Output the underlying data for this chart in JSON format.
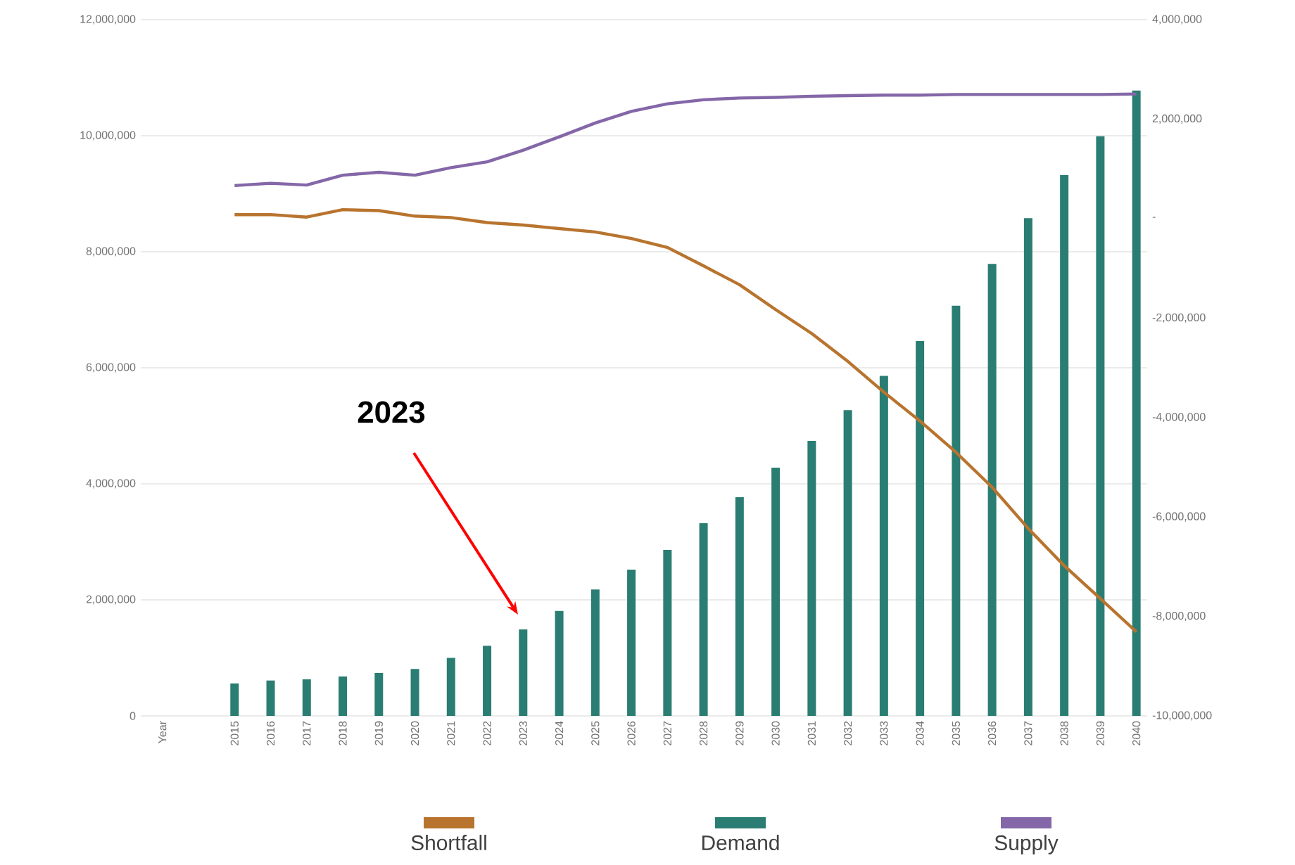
{
  "chart_data": {
    "type": "bar",
    "categories": [
      "Year",
      null,
      "2015",
      "2016",
      "2017",
      "2018",
      "2019",
      "2020",
      "2021",
      "2022",
      "2023",
      "2024",
      "2025",
      "2026",
      "2027",
      "2028",
      "2029",
      "2030",
      "2031",
      "2032",
      "2033",
      "2034",
      "2035",
      "2036",
      "2037",
      "2038",
      "2039",
      "2040"
    ],
    "series": [
      {
        "name": "Shortfall",
        "type": "line",
        "axis": "y2",
        "color": "#b8742e",
        "values": [
          null,
          null,
          80000,
          80000,
          30000,
          180000,
          160000,
          50000,
          20000,
          -80000,
          -130000,
          -200000,
          -270000,
          -400000,
          -580000,
          -950000,
          -1330000,
          -1830000,
          -2310000,
          -2870000,
          -3490000,
          -4070000,
          -4700000,
          -5400000,
          -6230000,
          -6980000,
          -7640000,
          -8310000
        ]
      },
      {
        "name": "Demand",
        "color": "#2a7d72",
        "values": [
          null,
          null,
          560000,
          610000,
          630000,
          680000,
          740000,
          810000,
          1000000,
          1210000,
          1490000,
          1810000,
          2180000,
          2520000,
          2860000,
          3320000,
          3770000,
          4280000,
          4740000,
          5270000,
          5860000,
          6460000,
          7070000,
          7790000,
          8580000,
          9320000,
          9990000,
          10780000
        ]
      },
      {
        "name": "Supply",
        "type": "line",
        "color": "#8467a8",
        "values": [
          null,
          null,
          9140000,
          9180000,
          9150000,
          9320000,
          9370000,
          9320000,
          9450000,
          9550000,
          9750000,
          9980000,
          10220000,
          10420000,
          10550000,
          10620000,
          10650000,
          10660000,
          10680000,
          10690000,
          10700000,
          10700000,
          10710000,
          10710000,
          10710000,
          10710000,
          10710000,
          10720000
        ]
      }
    ],
    "ylim": [
      0,
      12000000
    ],
    "yticks": [
      {
        "value": 0,
        "label": "0"
      },
      {
        "value": 2000000,
        "label": "2,000,000"
      },
      {
        "value": 4000000,
        "label": "4,000,000"
      },
      {
        "value": 6000000,
        "label": "6,000,000"
      },
      {
        "value": 8000000,
        "label": "8,000,000"
      },
      {
        "value": 10000000,
        "label": "10,000,000"
      },
      {
        "value": 12000000,
        "label": "12,000,000"
      }
    ],
    "y2lim": [
      -10000000,
      4000000
    ],
    "y2ticks": [
      {
        "value": -10000000,
        "label": "-10,000,000"
      },
      {
        "value": -8000000,
        "label": "-8,000,000"
      },
      {
        "value": -6000000,
        "label": "-6,000,000"
      },
      {
        "value": -4000000,
        "label": "-4,000,000"
      },
      {
        "value": -2000000,
        "label": "-2,000,000"
      },
      {
        "value": 0,
        "label": "-"
      },
      {
        "value": 2000000,
        "label": "2,000,000"
      },
      {
        "value": 4000000,
        "label": "4,000,000"
      }
    ],
    "annotations": [
      "2023"
    ],
    "grid": "y",
    "legend": "bottom"
  }
}
